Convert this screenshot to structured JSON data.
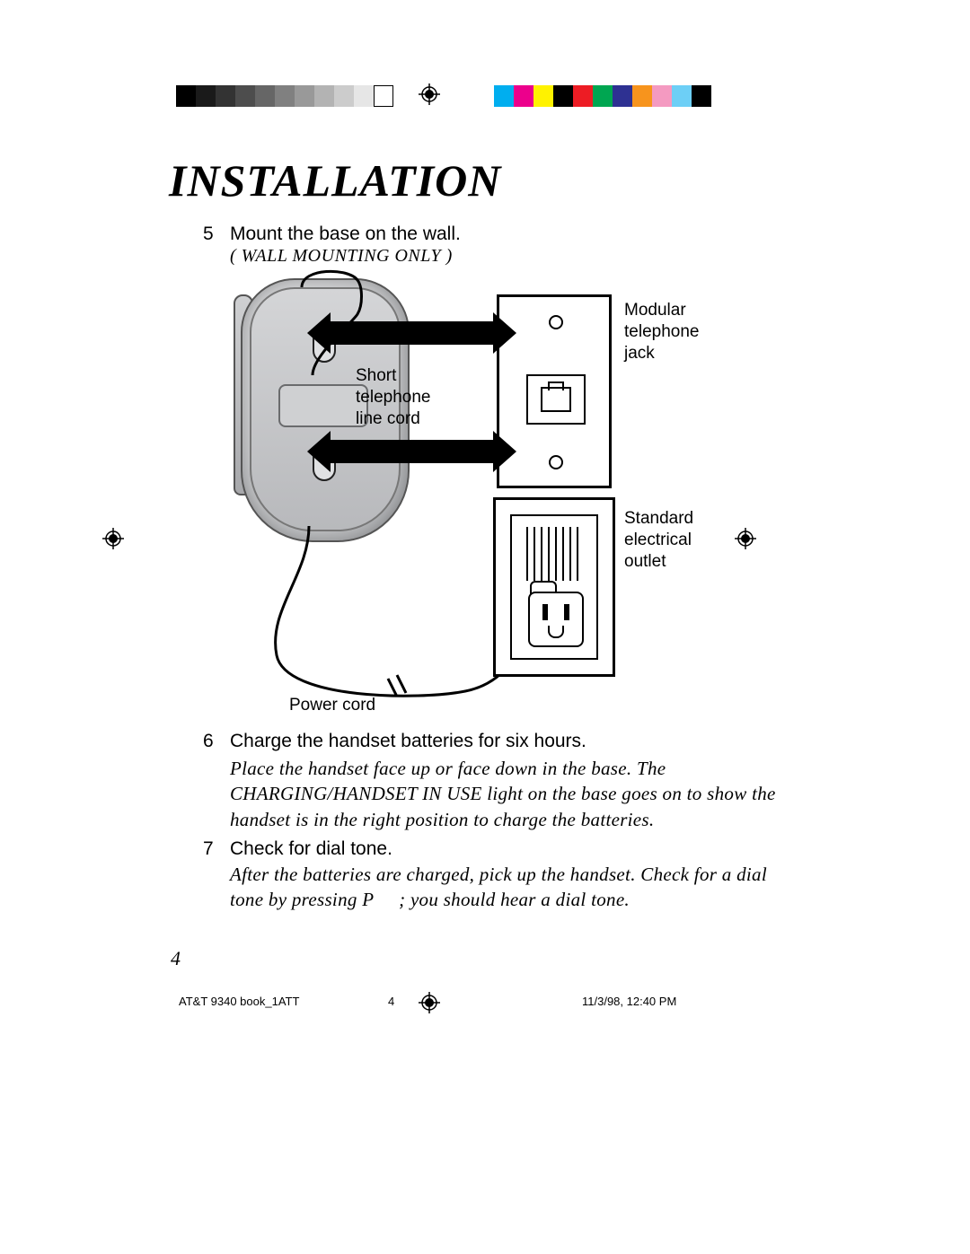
{
  "page": {
    "title": "INSTALLATION",
    "page_number": "4",
    "footer_left": "AT&T 9340 book_1ATT",
    "footer_center": "4",
    "footer_right": "11/3/98, 12:40 PM"
  },
  "colorbars": {
    "left": [
      "#000000",
      "#1a1a1a",
      "#333333",
      "#4d4d4d",
      "#666666",
      "#808080",
      "#999999",
      "#b3b3b3",
      "#cccccc",
      "#e6e6e6",
      "#ffffff"
    ],
    "right": [
      "#00aeef",
      "#ec008c",
      "#fff200",
      "#000000",
      "#ed1c24",
      "#00a651",
      "#2e3192",
      "#f7941d",
      "#f49ac1",
      "#6dcff6",
      "#000000"
    ]
  },
  "steps": {
    "s5": {
      "num": "5",
      "text": "Mount the base on the wall.",
      "sub": "( WALL MOUNTING ONLY )"
    },
    "s6": {
      "num": "6",
      "text": "Charge the handset batteries for six hours.",
      "body": "Place the handset face up or face down in the base. The CHARGING/HANDSET IN USE light on the base goes on to show the handset is in the right position to charge the batteries."
    },
    "s7": {
      "num": "7",
      "text": "Check for dial tone.",
      "body": "After the batteries are charged, pick up the handset. Check for a dial tone by pressing P     ; you should hear a dial tone."
    }
  },
  "labels": {
    "short_cord": "Short\ntelephone\nline cord",
    "modular_jack": "Modular\ntelephone\njack",
    "electrical_outlet": "Standard\nelectrical\noutlet",
    "power_cord": "Power cord"
  }
}
